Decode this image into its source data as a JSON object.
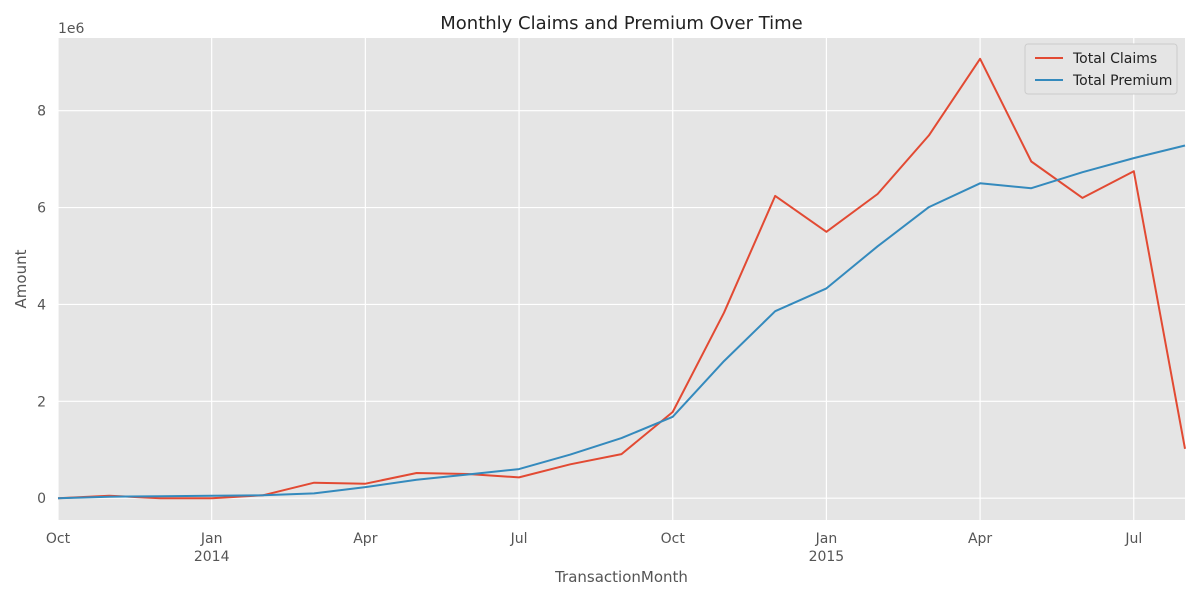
{
  "chart_data": {
    "type": "line",
    "title": "Monthly Claims and Premium Over Time",
    "xlabel": "TransactionMonth",
    "ylabel": "Amount",
    "y_offset_label": "1e6",
    "ylim": [
      -0.45,
      9.5
    ],
    "x_ticks": [
      {
        "date": "2013-10",
        "label": "Oct",
        "sublabel": ""
      },
      {
        "date": "2014-01",
        "label": "Jan",
        "sublabel": "2014"
      },
      {
        "date": "2014-04",
        "label": "Apr",
        "sublabel": ""
      },
      {
        "date": "2014-07",
        "label": "Jul",
        "sublabel": ""
      },
      {
        "date": "2014-10",
        "label": "Oct",
        "sublabel": ""
      },
      {
        "date": "2015-01",
        "label": "Jan",
        "sublabel": "2015"
      },
      {
        "date": "2015-04",
        "label": "Apr",
        "sublabel": ""
      },
      {
        "date": "2015-07",
        "label": "Jul",
        "sublabel": ""
      }
    ],
    "y_ticks": [
      "0",
      "2",
      "4",
      "6",
      "8"
    ],
    "x": [
      "2013-10",
      "2013-11",
      "2013-12",
      "2014-01",
      "2014-02",
      "2014-03",
      "2014-04",
      "2014-05",
      "2014-06",
      "2014-07",
      "2014-08",
      "2014-09",
      "2014-10",
      "2014-11",
      "2014-12",
      "2015-01",
      "2015-02",
      "2015-03",
      "2015-04",
      "2015-05",
      "2015-06",
      "2015-07",
      "2015-08"
    ],
    "series": [
      {
        "name": "Total Claims",
        "color": "#E24A33",
        "values": [
          0.0,
          0.05,
          0.0,
          0.0,
          0.06,
          0.32,
          0.3,
          0.52,
          0.5,
          0.43,
          0.7,
          0.91,
          1.78,
          3.83,
          6.24,
          5.5,
          6.28,
          7.49,
          9.07,
          6.95,
          6.2,
          6.75,
          1.02
        ]
      },
      {
        "name": "Total Premium",
        "color": "#348ABD",
        "values": [
          0.0,
          0.03,
          0.04,
          0.05,
          0.06,
          0.1,
          0.23,
          0.38,
          0.49,
          0.6,
          0.9,
          1.24,
          1.68,
          2.83,
          3.86,
          4.33,
          5.2,
          6.01,
          6.5,
          6.4,
          6.73,
          7.02,
          7.28
        ]
      }
    ],
    "grid": true,
    "legend": "top-right",
    "background": "#E5E5E5"
  }
}
